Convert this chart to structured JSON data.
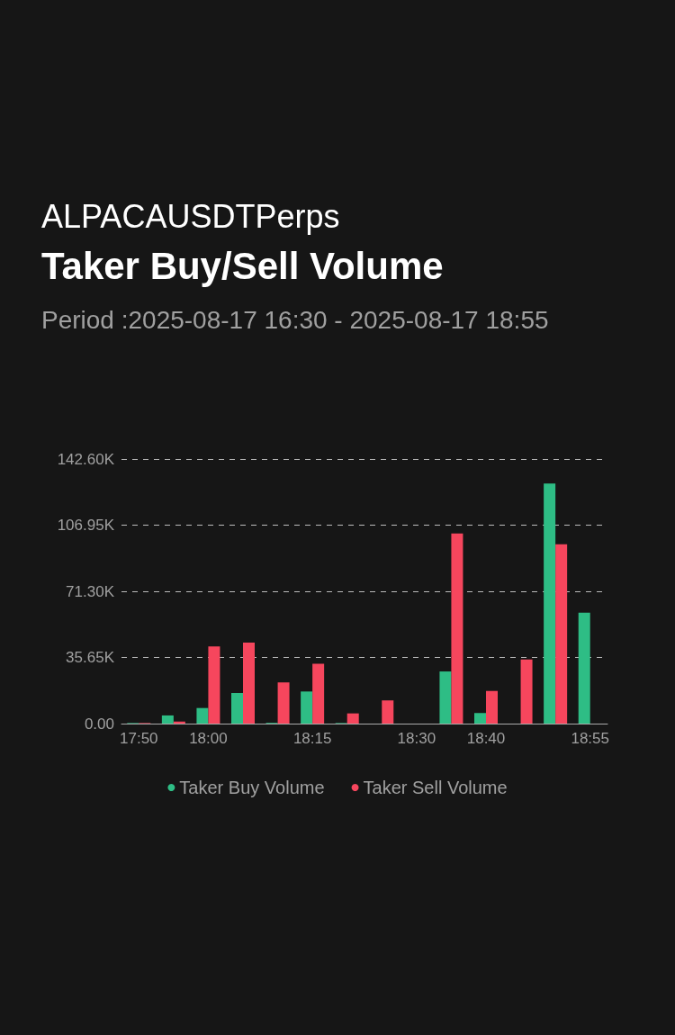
{
  "chart_data": {
    "type": "bar",
    "title": "Taker Buy/Sell Volume",
    "subtitle": "Period :2025-08-17 16:30 - 2025-08-17 18:55",
    "annotations": [
      "ALPACAUSDTPerps"
    ],
    "categories": [
      "17:50",
      null,
      "18:00",
      null,
      null,
      "18:15",
      null,
      null,
      "18:30",
      null,
      "18:40",
      null,
      null,
      "18:55"
    ],
    "series": [
      {
        "name": "Taker Buy Volume",
        "color": "#2ebd85",
        "values": [
          0.3,
          4.4,
          8.4,
          16.5,
          0.4,
          17.3,
          0.3,
          0,
          0,
          28.1,
          5.7,
          0,
          129.4,
          59.8
        ]
      },
      {
        "name": "Taker Sell Volume",
        "color": "#f6465d",
        "values": [
          0.3,
          1.1,
          41.6,
          43.7,
          22.2,
          32.3,
          5.5,
          12.5,
          0,
          102.5,
          17.6,
          34.6,
          96.7,
          0
        ]
      }
    ],
    "ylim": [
      0,
      142.6
    ],
    "yticks": [
      {
        "value": 0,
        "label": "0.00"
      },
      {
        "value": 35.65,
        "label": "35.65K"
      },
      {
        "value": 71.3,
        "label": "71.30K"
      },
      {
        "value": 106.95,
        "label": "106.95K"
      },
      {
        "value": 142.6,
        "label": "142.60K"
      }
    ],
    "grid": "y",
    "legend": "bottom"
  }
}
